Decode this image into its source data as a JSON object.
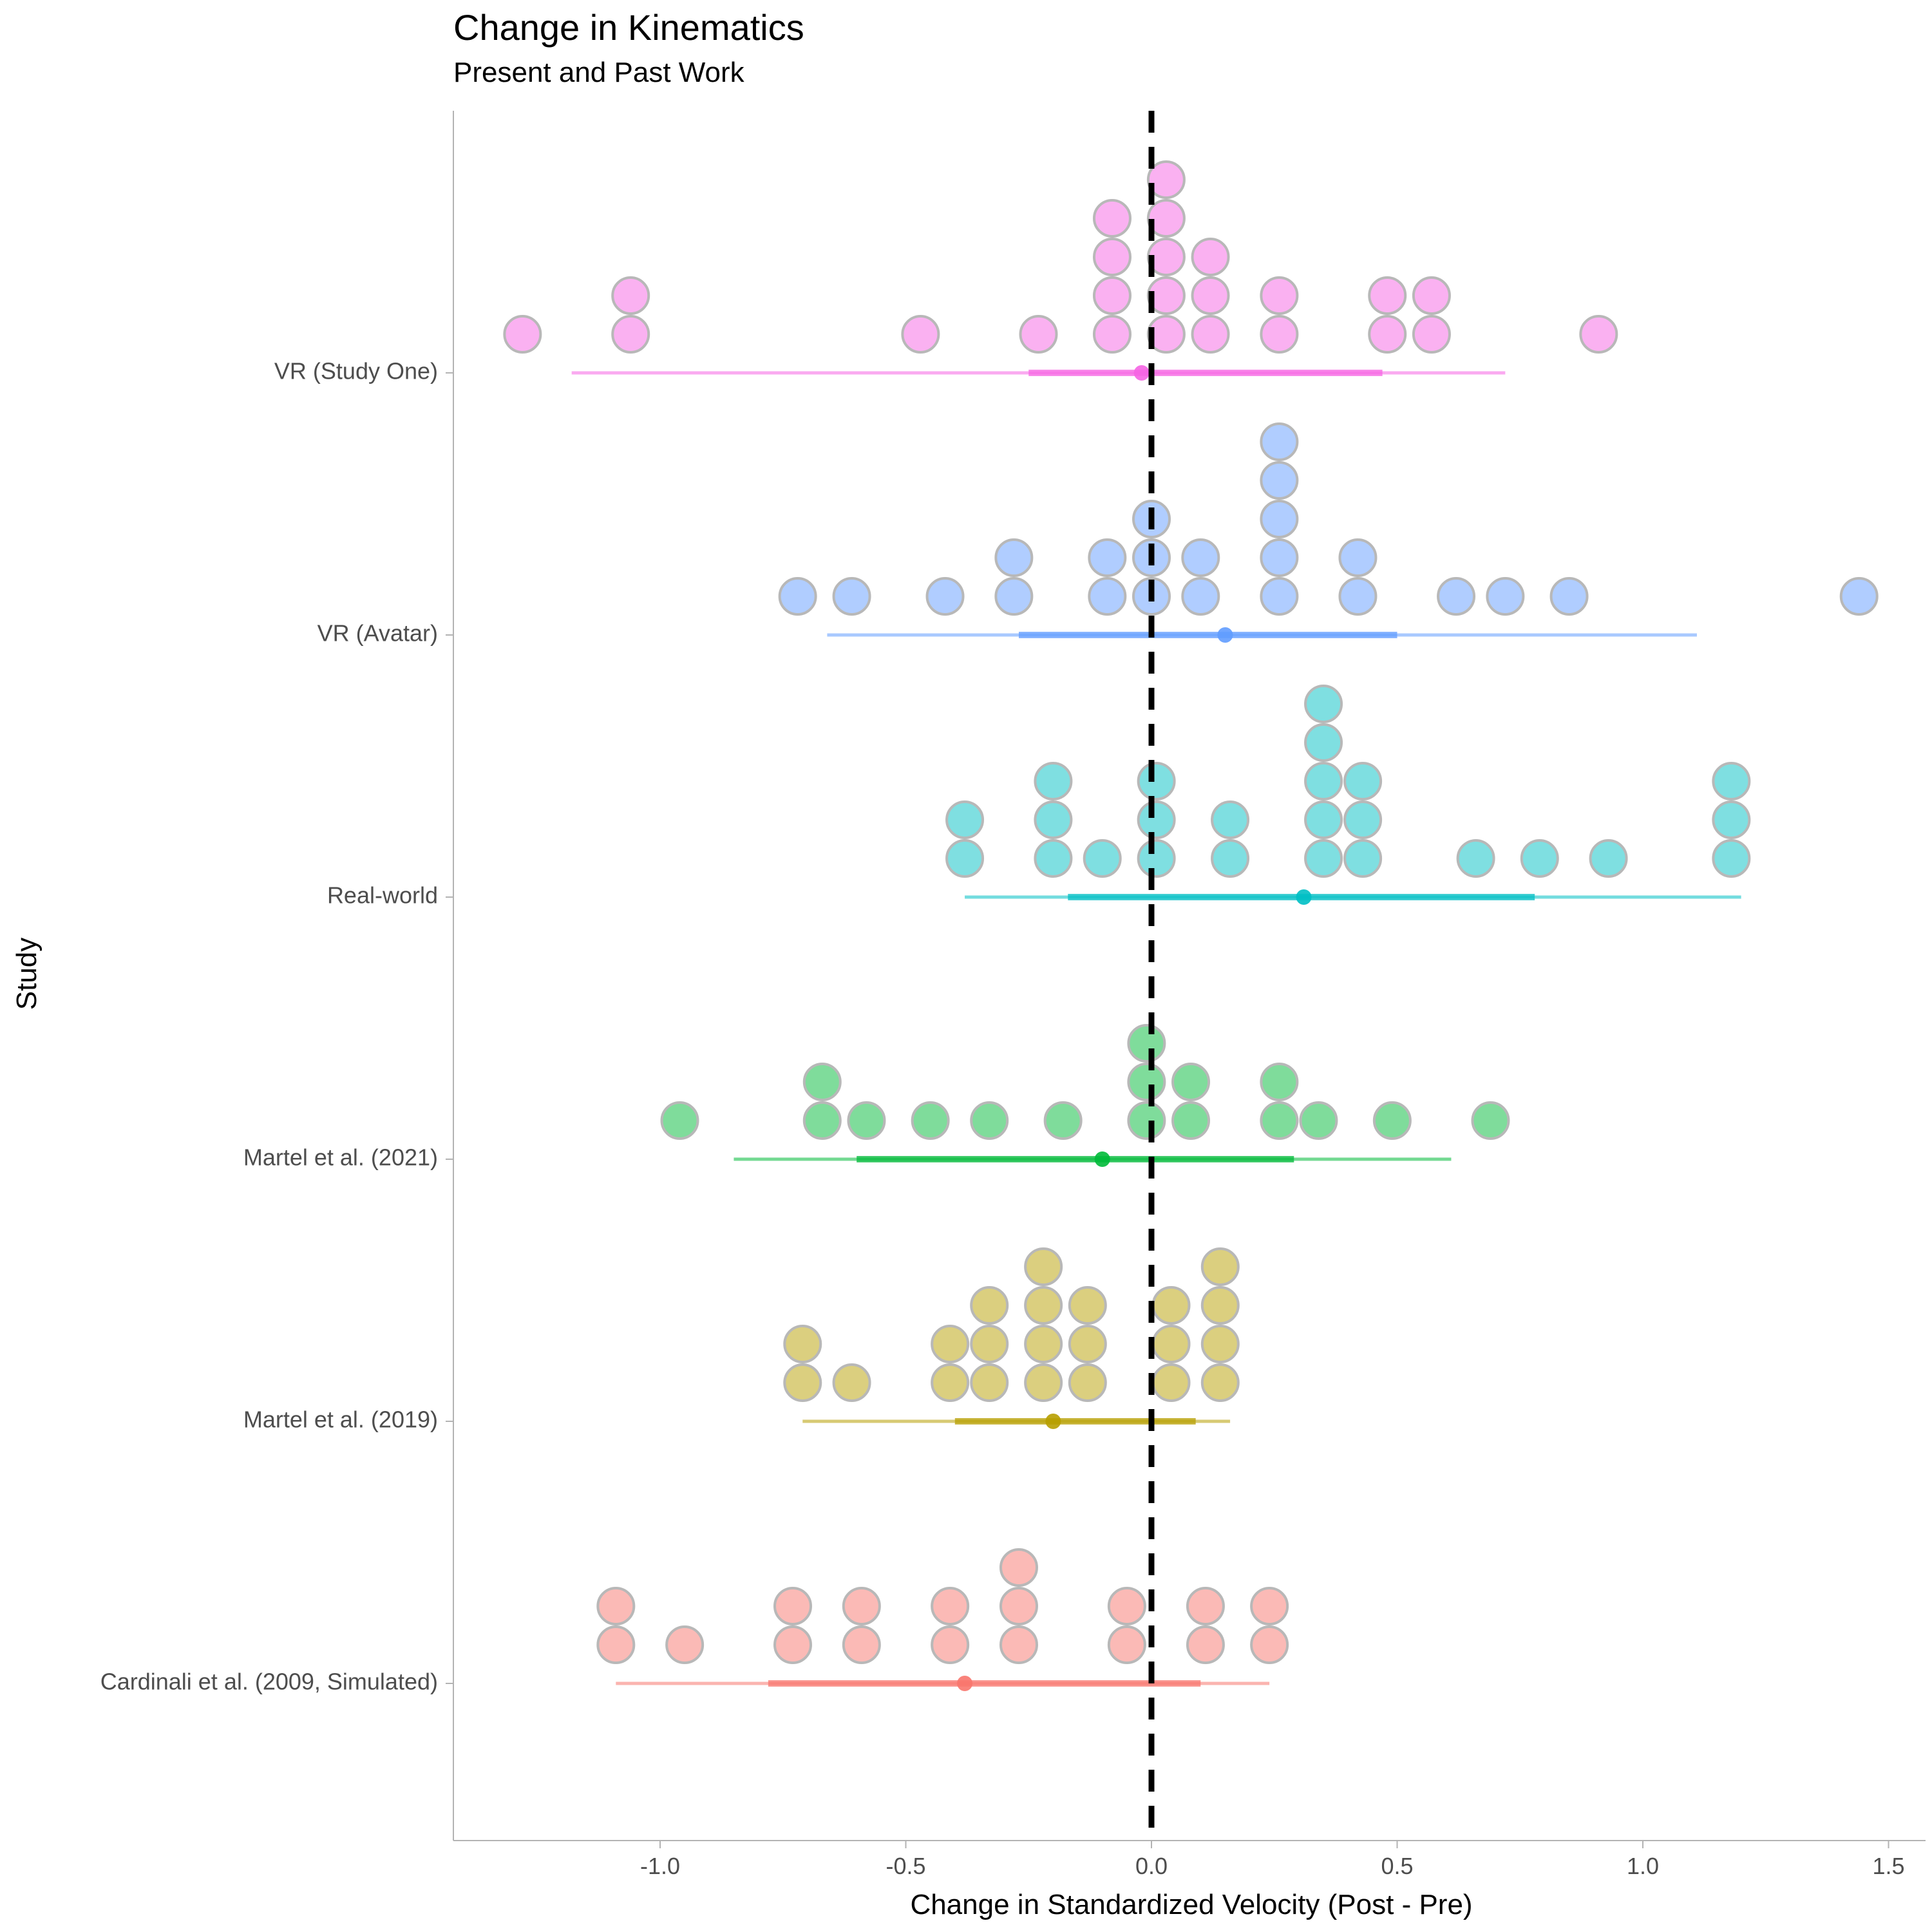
{
  "chart_data": {
    "type": "scatter",
    "title": "Change in Kinematics",
    "subtitle": "Present and Past Work",
    "xlabel": "Change in Standardized Velocity (Post - Pre)",
    "ylabel": "Study",
    "xlim": [
      -1.42,
      1.57
    ],
    "x_ticks": [
      -1.0,
      -0.5,
      0.0,
      0.5,
      1.0,
      1.5
    ],
    "x_tick_labels": [
      "-1.0",
      "-0.5",
      "0.0",
      "0.5",
      "1.0",
      "1.5"
    ],
    "reference_line": {
      "x": 0,
      "style": "dashed",
      "color": "#000000"
    },
    "grid": false,
    "legend": "none",
    "dot_stroke": "#b8b8b8",
    "categories": [
      "Cardinali et al. (2009, Simulated)",
      "Martel et al. (2019)",
      "Martel et al. (2021)",
      "Real-world",
      "VR (Avatar)",
      "VR (Study One)"
    ],
    "series": [
      {
        "name": "Cardinali et al. (2009, Simulated)",
        "color": "#F8766D",
        "dots": [
          [
            -1.09,
            2
          ],
          [
            -0.95,
            1
          ],
          [
            -0.73,
            2
          ],
          [
            -0.59,
            2
          ],
          [
            -0.41,
            2
          ],
          [
            -0.27,
            3
          ],
          [
            -0.05,
            2
          ],
          [
            0.11,
            2
          ],
          [
            0.24,
            2
          ]
        ],
        "mean": -0.38,
        "inner_interval": [
          -0.78,
          0.1
        ],
        "outer_interval": [
          -1.09,
          0.24
        ]
      },
      {
        "name": "Martel et al. (2019)",
        "color": "#B79F00",
        "dots": [
          [
            -0.71,
            2
          ],
          [
            -0.61,
            1
          ],
          [
            -0.41,
            2
          ],
          [
            -0.33,
            3
          ],
          [
            -0.22,
            4
          ],
          [
            -0.13,
            3
          ],
          [
            0.04,
            3
          ],
          [
            0.14,
            4
          ]
        ],
        "mean": -0.2,
        "inner_interval": [
          -0.4,
          0.09
        ],
        "outer_interval": [
          -0.71,
          0.16
        ]
      },
      {
        "name": "Martel et al. (2021)",
        "color": "#00BA38",
        "dots": [
          [
            -0.96,
            1
          ],
          [
            -0.67,
            2
          ],
          [
            -0.58,
            1
          ],
          [
            -0.45,
            1
          ],
          [
            -0.33,
            1
          ],
          [
            -0.18,
            1
          ],
          [
            -0.01,
            3
          ],
          [
            0.08,
            2
          ],
          [
            0.26,
            2
          ],
          [
            0.34,
            1
          ],
          [
            0.49,
            1
          ],
          [
            0.69,
            1
          ]
        ],
        "mean": -0.1,
        "inner_interval": [
          -0.6,
          0.29
        ],
        "outer_interval": [
          -0.85,
          0.61
        ]
      },
      {
        "name": "Real-world",
        "color": "#00BFC4",
        "dots": [
          [
            -0.38,
            2
          ],
          [
            -0.2,
            3
          ],
          [
            -0.1,
            1
          ],
          [
            0.01,
            3
          ],
          [
            0.16,
            2
          ],
          [
            0.35,
            5
          ],
          [
            0.43,
            3
          ],
          [
            0.66,
            1
          ],
          [
            0.79,
            1
          ],
          [
            0.93,
            1
          ],
          [
            1.18,
            3
          ]
        ],
        "mean": 0.31,
        "inner_interval": [
          -0.17,
          0.78
        ],
        "outer_interval": [
          -0.38,
          1.2
        ]
      },
      {
        "name": "VR (Avatar)",
        "color": "#619CFF",
        "dots": [
          [
            -0.72,
            1
          ],
          [
            -0.61,
            1
          ],
          [
            -0.42,
            1
          ],
          [
            -0.28,
            2
          ],
          [
            -0.09,
            2
          ],
          [
            0.0,
            3
          ],
          [
            0.1,
            2
          ],
          [
            0.26,
            5
          ],
          [
            0.42,
            2
          ],
          [
            0.62,
            1
          ],
          [
            0.72,
            1
          ],
          [
            0.85,
            1
          ],
          [
            1.44,
            1
          ]
        ],
        "mean": 0.15,
        "inner_interval": [
          -0.27,
          0.5
        ],
        "outer_interval": [
          -0.66,
          1.11
        ]
      },
      {
        "name": "VR (Study One)",
        "color": "#F564E3",
        "dots": [
          [
            -1.28,
            1
          ],
          [
            -1.06,
            2
          ],
          [
            -0.47,
            1
          ],
          [
            -0.23,
            1
          ],
          [
            -0.08,
            4
          ],
          [
            0.03,
            5
          ],
          [
            0.12,
            3
          ],
          [
            0.26,
            2
          ],
          [
            0.48,
            2
          ],
          [
            0.57,
            2
          ],
          [
            0.91,
            1
          ]
        ],
        "mean": -0.02,
        "inner_interval": [
          -0.25,
          0.47
        ],
        "outer_interval": [
          -1.18,
          0.72
        ]
      }
    ]
  }
}
